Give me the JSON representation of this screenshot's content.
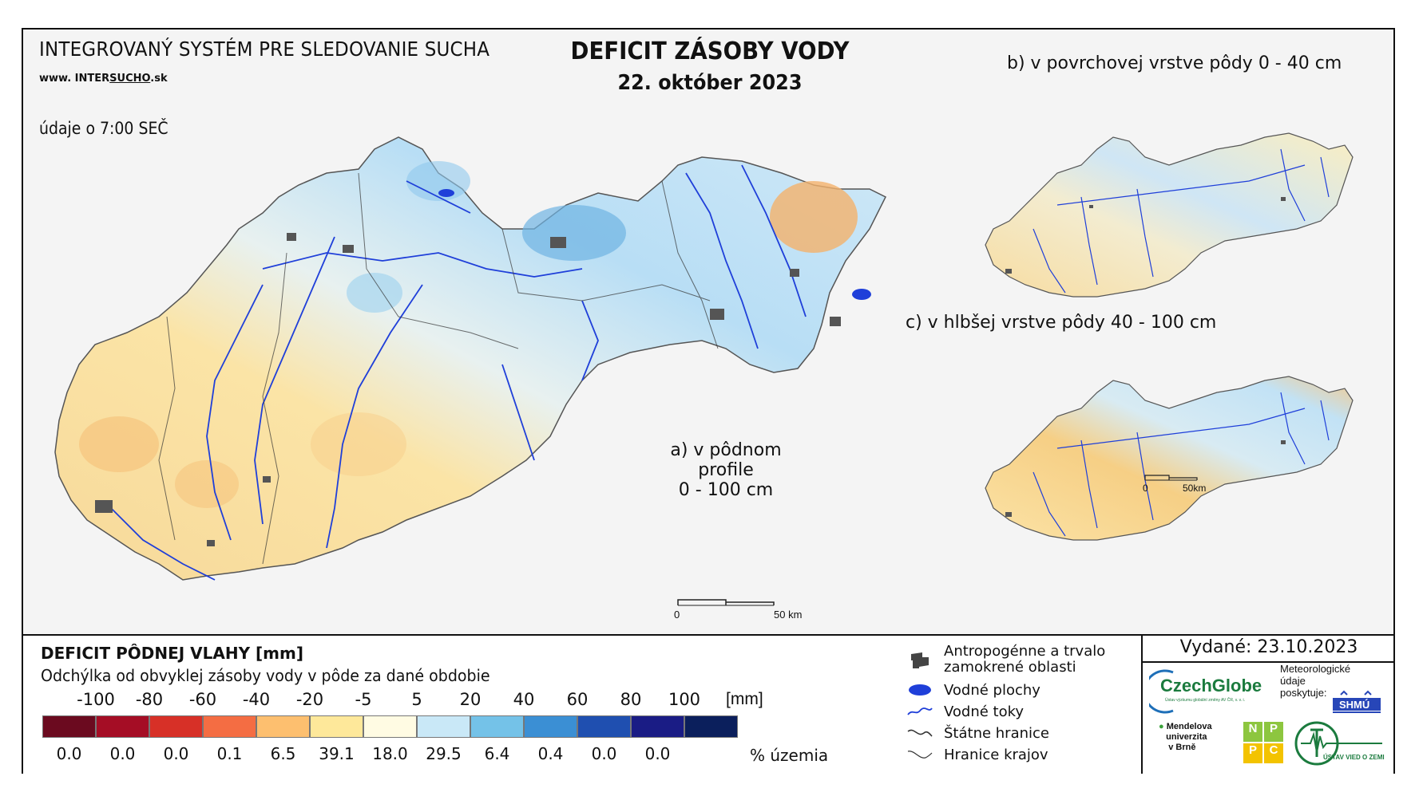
{
  "header": {
    "system_title": "INTEGROVANÝ SYSTÉM PRE SLEDOVANIE SUCHA",
    "website_prefix": "www.",
    "website_part1": "INTER",
    "website_part2": "SUCHO",
    "website_suffix": ".sk",
    "data_time": "údaje o 7:00 SEČ",
    "title": "DEFICIT ZÁSOBY VODY",
    "date": "22. október 2023"
  },
  "maps": {
    "a_label_line1": "a) v pôdnom profile",
    "a_label_line2": "0 - 100 cm",
    "b_label": "b) v povrchovej vrstve pôdy 0 - 40 cm",
    "c_label": "c) v hlbšej vrstve pôdy 40 - 100 cm",
    "scale_main_start": "0",
    "scale_main_end": "50 km",
    "scale_small_start": "0",
    "scale_small_end": "50km"
  },
  "legend": {
    "title": "DEFICIT PÔDNEJ VLAHY [mm]",
    "subtitle": "Odchýlka od obvyklej zásoby vody v pôde za dané obdobie",
    "ticks": [
      "-100",
      "-80",
      "-60",
      "-40",
      "-20",
      "-5",
      "5",
      "20",
      "40",
      "60",
      "80",
      "100"
    ],
    "unit": "[mm]",
    "colors": [
      "#6b0a1f",
      "#a50d25",
      "#d73027",
      "#f46d43",
      "#fdbf6f",
      "#fee89a",
      "#fffbe3",
      "#c9e8f7",
      "#74c2e8",
      "#3b8fd4",
      "#1f4fb0",
      "#1a1c85",
      "#0b1f5c"
    ],
    "percentages": [
      "0.0",
      "0.0",
      "0.0",
      "0.1",
      "6.5",
      "39.1",
      "18.0",
      "29.5",
      "6.4",
      "0.4",
      "0.0",
      "0.0"
    ],
    "percent_unit": "% územia"
  },
  "symbols": {
    "anthropogenic_line1": "Antropogénne a trvalo",
    "anthropogenic_line2": "zamokrené oblasti",
    "water_bodies": "Vodné plochy",
    "water_streams": "Vodné toky",
    "state_borders": "Štátne hranice",
    "region_borders": "Hranice krajov"
  },
  "issued": {
    "label": "Vydané: 23.10.2023",
    "czechglobe": "CzechGlobe",
    "czechglobe_sub": "Ústav výzkumu globální změny AV ČR, v. v. i.",
    "meteo_line1": "Meteorologické",
    "meteo_line2": "údaje",
    "meteo_line3": "poskytuje:",
    "shmu": "SHMÚ",
    "mendel_line1": "Mendelova",
    "mendel_line2": "univerzita",
    "mendel_line3": "v Brně",
    "nppc": [
      "N",
      "P",
      "P",
      "C"
    ],
    "uvz": "ÚSTAV VIED O ZEMI"
  }
}
